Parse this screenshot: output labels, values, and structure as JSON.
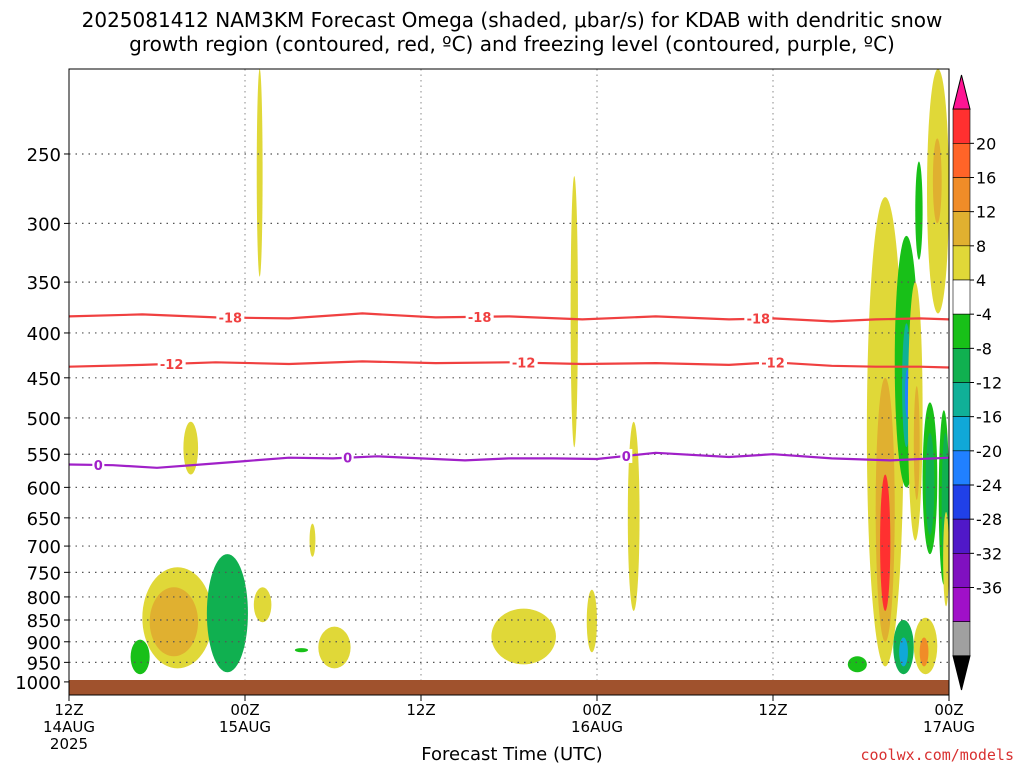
{
  "title_line1": "2025081412 NAM3KM Forecast Omega (shaded, μbar/s) for KDAB with dendritic snow",
  "title_line2": "growth region (contoured, red, ºC) and freezing level (contoured, purple, ºC)",
  "credit": "coolwx.com/models",
  "chart_data": {
    "type": "heatmap",
    "xlabel": "Forecast Time (UTC)",
    "ylabel": "",
    "x_ticks": [
      {
        "hour": 0,
        "top": "12Z",
        "mid": "14AUG",
        "bot": "2025"
      },
      {
        "hour": 12,
        "top": "00Z",
        "mid": "15AUG",
        "bot": ""
      },
      {
        "hour": 24,
        "top": "12Z",
        "mid": "",
        "bot": ""
      },
      {
        "hour": 36,
        "top": "00Z",
        "mid": "16AUG",
        "bot": ""
      },
      {
        "hour": 48,
        "top": "12Z",
        "mid": "",
        "bot": ""
      },
      {
        "hour": 60,
        "top": "00Z",
        "mid": "17AUG",
        "bot": ""
      }
    ],
    "y_ticks": [
      250,
      300,
      350,
      400,
      450,
      500,
      550,
      600,
      650,
      700,
      750,
      800,
      850,
      900,
      950,
      1000
    ],
    "xlim_hours": [
      0,
      60
    ],
    "ylim_hPa": [
      200,
      1035
    ],
    "colorbar": {
      "labels": [
        20,
        16,
        12,
        8,
        4,
        -4,
        -8,
        -12,
        -16,
        -20,
        -24,
        -28,
        -32,
        -36
      ],
      "colors": [
        "#ff1493",
        "#ff3030",
        "#ff6428",
        "#f08c28",
        "#e0b030",
        "#e0d838",
        "#ffffff",
        "#18c018",
        "#10b050",
        "#10b098",
        "#10a8d8",
        "#2080ff",
        "#2040e8",
        "#5018c8",
        "#8010c0",
        "#a010c8",
        "#a0a0a0",
        "#000000"
      ]
    },
    "contours": [
      {
        "label": "-18",
        "color": "#f04040",
        "points": [
          [
            0,
            383
          ],
          [
            5,
            381
          ],
          [
            10,
            384
          ],
          [
            15,
            385
          ],
          [
            20,
            380
          ],
          [
            25,
            384
          ],
          [
            30,
            383
          ],
          [
            35,
            386
          ],
          [
            40,
            383
          ],
          [
            45,
            386
          ],
          [
            48,
            385
          ],
          [
            52,
            388
          ],
          [
            55,
            386
          ],
          [
            58,
            385
          ],
          [
            60,
            386
          ]
        ],
        "label_hours": [
          11,
          28,
          47
        ]
      },
      {
        "label": "-12",
        "color": "#f04040",
        "points": [
          [
            0,
            437
          ],
          [
            5,
            435
          ],
          [
            10,
            432
          ],
          [
            15,
            434
          ],
          [
            20,
            431
          ],
          [
            25,
            433
          ],
          [
            30,
            432
          ],
          [
            35,
            434
          ],
          [
            40,
            433
          ],
          [
            45,
            435
          ],
          [
            48,
            432
          ],
          [
            52,
            436
          ],
          [
            55,
            437
          ],
          [
            58,
            437
          ],
          [
            60,
            438
          ]
        ],
        "label_hours": [
          7,
          31,
          48
        ]
      },
      {
        "label": "0",
        "color": "#a020c8",
        "points": [
          [
            0,
            565
          ],
          [
            3,
            566
          ],
          [
            6,
            570
          ],
          [
            9,
            565
          ],
          [
            12,
            560
          ],
          [
            15,
            555
          ],
          [
            18,
            556
          ],
          [
            21,
            553
          ],
          [
            24,
            556
          ],
          [
            27,
            559
          ],
          [
            30,
            556
          ],
          [
            33,
            556
          ],
          [
            36,
            557
          ],
          [
            40,
            548
          ],
          [
            45,
            554
          ],
          [
            48,
            550
          ],
          [
            52,
            556
          ],
          [
            56,
            559
          ],
          [
            60,
            555
          ]
        ],
        "label_hours": [
          2,
          19,
          38
        ]
      }
    ],
    "omega_regions": [
      {
        "value": 4,
        "x": [
          12.8,
          13.2
        ],
        "p": [
          200,
          345
        ]
      },
      {
        "value": 4,
        "x": [
          7.8,
          8.8
        ],
        "p": [
          505,
          580
        ]
      },
      {
        "value": 4,
        "x": [
          5.0,
          9.8
        ],
        "p": [
          740,
          965
        ]
      },
      {
        "value": 8,
        "x": [
          5.5,
          8.8
        ],
        "p": [
          780,
          935
        ]
      },
      {
        "value": -4,
        "x": [
          4.2,
          5.5
        ],
        "p": [
          895,
          980
        ]
      },
      {
        "value": -8,
        "x": [
          9.4,
          12.2
        ],
        "p": [
          715,
          975
        ]
      },
      {
        "value": 4,
        "x": [
          12.6,
          13.8
        ],
        "p": [
          780,
          855
        ]
      },
      {
        "value": 4,
        "x": [
          16.4,
          16.8
        ],
        "p": [
          660,
          720
        ]
      },
      {
        "value": -4,
        "x": [
          15.4,
          16.3
        ],
        "p": [
          915,
          925
        ]
      },
      {
        "value": 4,
        "x": [
          17.0,
          19.2
        ],
        "p": [
          865,
          965
        ]
      },
      {
        "value": 4,
        "x": [
          28.8,
          33.2
        ],
        "p": [
          825,
          955
        ]
      },
      {
        "value": 4,
        "x": [
          34.2,
          34.7
        ],
        "p": [
          265,
          540
        ]
      },
      {
        "value": 4,
        "x": [
          35.3,
          36.0
        ],
        "p": [
          785,
          925
        ]
      },
      {
        "value": 4,
        "x": [
          38.1,
          38.9
        ],
        "p": [
          505,
          830
        ]
      },
      {
        "value": -4,
        "x": [
          53.1,
          54.4
        ],
        "p": [
          935,
          975
        ]
      },
      {
        "value": 4,
        "x": [
          54.4,
          56.9
        ],
        "p": [
          280,
          960
        ]
      },
      {
        "value": 8,
        "x": [
          55.0,
          56.3
        ],
        "p": [
          450,
          900
        ]
      },
      {
        "value": 16,
        "x": [
          55.3,
          56.0
        ],
        "p": [
          580,
          830
        ]
      },
      {
        "value": -4,
        "x": [
          56.3,
          57.9
        ],
        "p": [
          310,
          600
        ]
      },
      {
        "value": -12,
        "x": [
          56.8,
          57.4
        ],
        "p": [
          390,
          540
        ]
      },
      {
        "value": -20,
        "x": [
          57.0,
          57.3
        ],
        "p": [
          440,
          500
        ]
      },
      {
        "value": -8,
        "x": [
          56.2,
          57.6
        ],
        "p": [
          850,
          980
        ]
      },
      {
        "value": -16,
        "x": [
          56.6,
          57.2
        ],
        "p": [
          890,
          960
        ]
      },
      {
        "value": 4,
        "x": [
          57.2,
          58.2
        ],
        "p": [
          350,
          690
        ]
      },
      {
        "value": 8,
        "x": [
          57.6,
          58.0
        ],
        "p": [
          460,
          620
        ]
      },
      {
        "value": 4,
        "x": [
          57.6,
          59.2
        ],
        "p": [
          845,
          980
        ]
      },
      {
        "value": 12,
        "x": [
          58.0,
          58.6
        ],
        "p": [
          890,
          960
        ]
      },
      {
        "value": -4,
        "x": [
          57.7,
          58.2
        ],
        "p": [
          255,
          330
        ]
      },
      {
        "value": 4,
        "x": [
          58.5,
          60.0
        ],
        "p": [
          200,
          380
        ]
      },
      {
        "value": 8,
        "x": [
          58.9,
          59.5
        ],
        "p": [
          240,
          300
        ]
      },
      {
        "value": -4,
        "x": [
          58.2,
          59.2
        ],
        "p": [
          480,
          715
        ]
      },
      {
        "value": -8,
        "x": [
          58.4,
          59.0
        ],
        "p": [
          520,
          680
        ]
      },
      {
        "value": -4,
        "x": [
          59.3,
          60.0
        ],
        "p": [
          490,
          775
        ]
      },
      {
        "value": -8,
        "x": [
          59.5,
          60.0
        ],
        "p": [
          520,
          760
        ]
      },
      {
        "value": 4,
        "x": [
          59.6,
          60.0
        ],
        "p": [
          640,
          820
        ]
      }
    ]
  }
}
